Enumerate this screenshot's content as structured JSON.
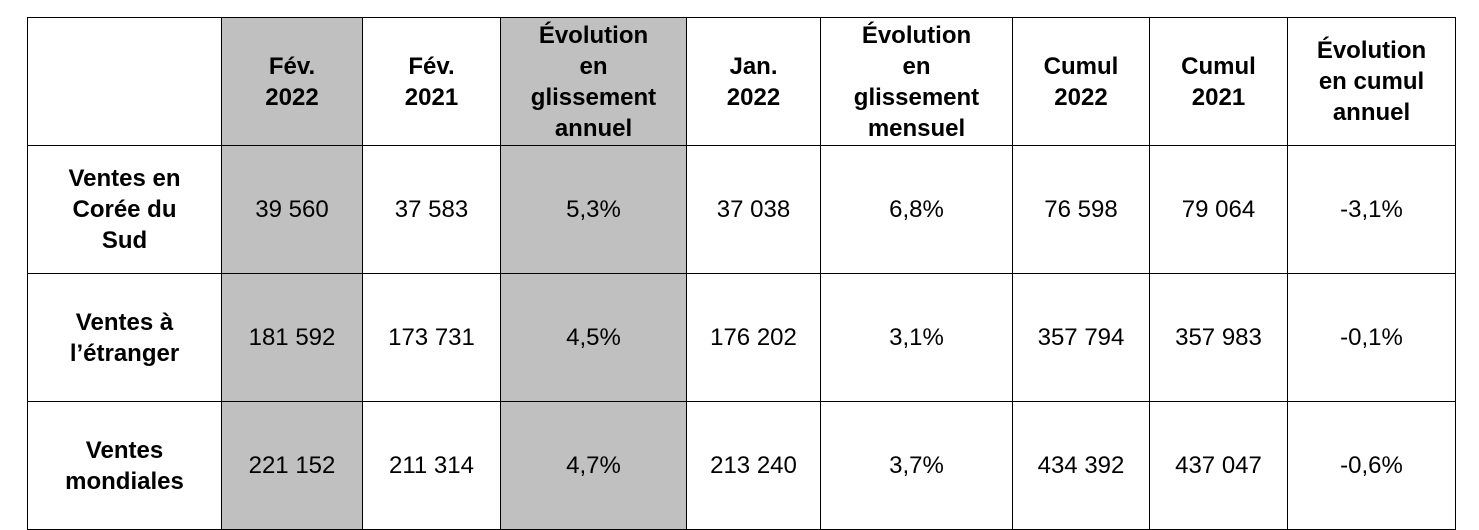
{
  "table": {
    "header": {
      "corner": "",
      "feb_2022": "Fév.\n2022",
      "feb_2021": "Fév.\n2021",
      "yoy": "Évolution\nen\nglissement\nannuel",
      "jan_2022": "Jan.\n2022",
      "mom": "Évolution\nen\nglissement\nmensuel",
      "cum_2022": "Cumul\n2022",
      "cum_2021": "Cumul\n2021",
      "cum_change": "Évolution\nen cumul\nannuel"
    },
    "rows": [
      {
        "label": "Ventes en\nCorée du\nSud",
        "feb_2022": "39 560",
        "feb_2021": "37 583",
        "yoy": "5,3%",
        "jan_2022": "37 038",
        "mom": "6,8%",
        "cum_2022": "76 598",
        "cum_2021": "79 064",
        "cum_change": "-3,1%"
      },
      {
        "label": "Ventes à\nl’étranger",
        "feb_2022": "181 592",
        "feb_2021": "173 731",
        "yoy": "4,5%",
        "jan_2022": "176 202",
        "mom": "3,1%",
        "cum_2022": "357 794",
        "cum_2021": "357 983",
        "cum_change": "-0,1%"
      },
      {
        "label": "Ventes\nmondiales",
        "feb_2022": "221 152",
        "feb_2021": "211 314",
        "yoy": "4,7%",
        "jan_2022": "213 240",
        "mom": "3,7%",
        "cum_2022": "434 392",
        "cum_2021": "437 047",
        "cum_change": "-0,6%"
      }
    ],
    "shade_color": "#c0c0c0"
  }
}
